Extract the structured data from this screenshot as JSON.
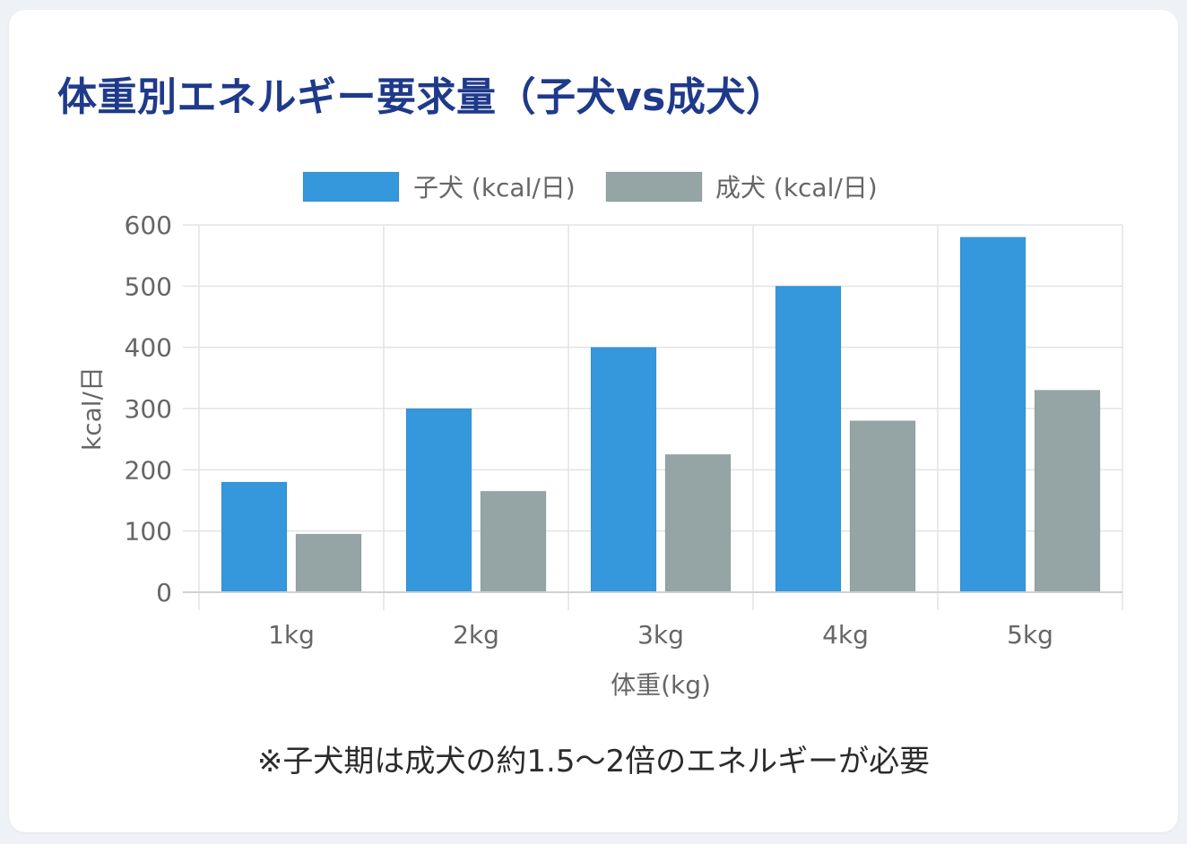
{
  "title": "体重別エネルギー要求量（子犬vs成犬）",
  "note": "※子犬期は成犬の約1.5〜2倍のエネルギーが必要",
  "chart_data": {
    "type": "bar",
    "categories": [
      "1kg",
      "2kg",
      "3kg",
      "4kg",
      "5kg"
    ],
    "series": [
      {
        "name": "子犬 (kcal/日)",
        "color": "#3597dc",
        "values": [
          180,
          300,
          400,
          500,
          580
        ]
      },
      {
        "name": "成犬 (kcal/日)",
        "color": "#95a5a5",
        "values": [
          95,
          165,
          225,
          280,
          330
        ]
      }
    ],
    "xlabel": "体重(kg)",
    "ylabel": "kcal/日",
    "ylim": [
      0,
      600
    ],
    "yticks": [
      0,
      100,
      200,
      300,
      400,
      500,
      600
    ],
    "grid": true,
    "legend": "top"
  }
}
